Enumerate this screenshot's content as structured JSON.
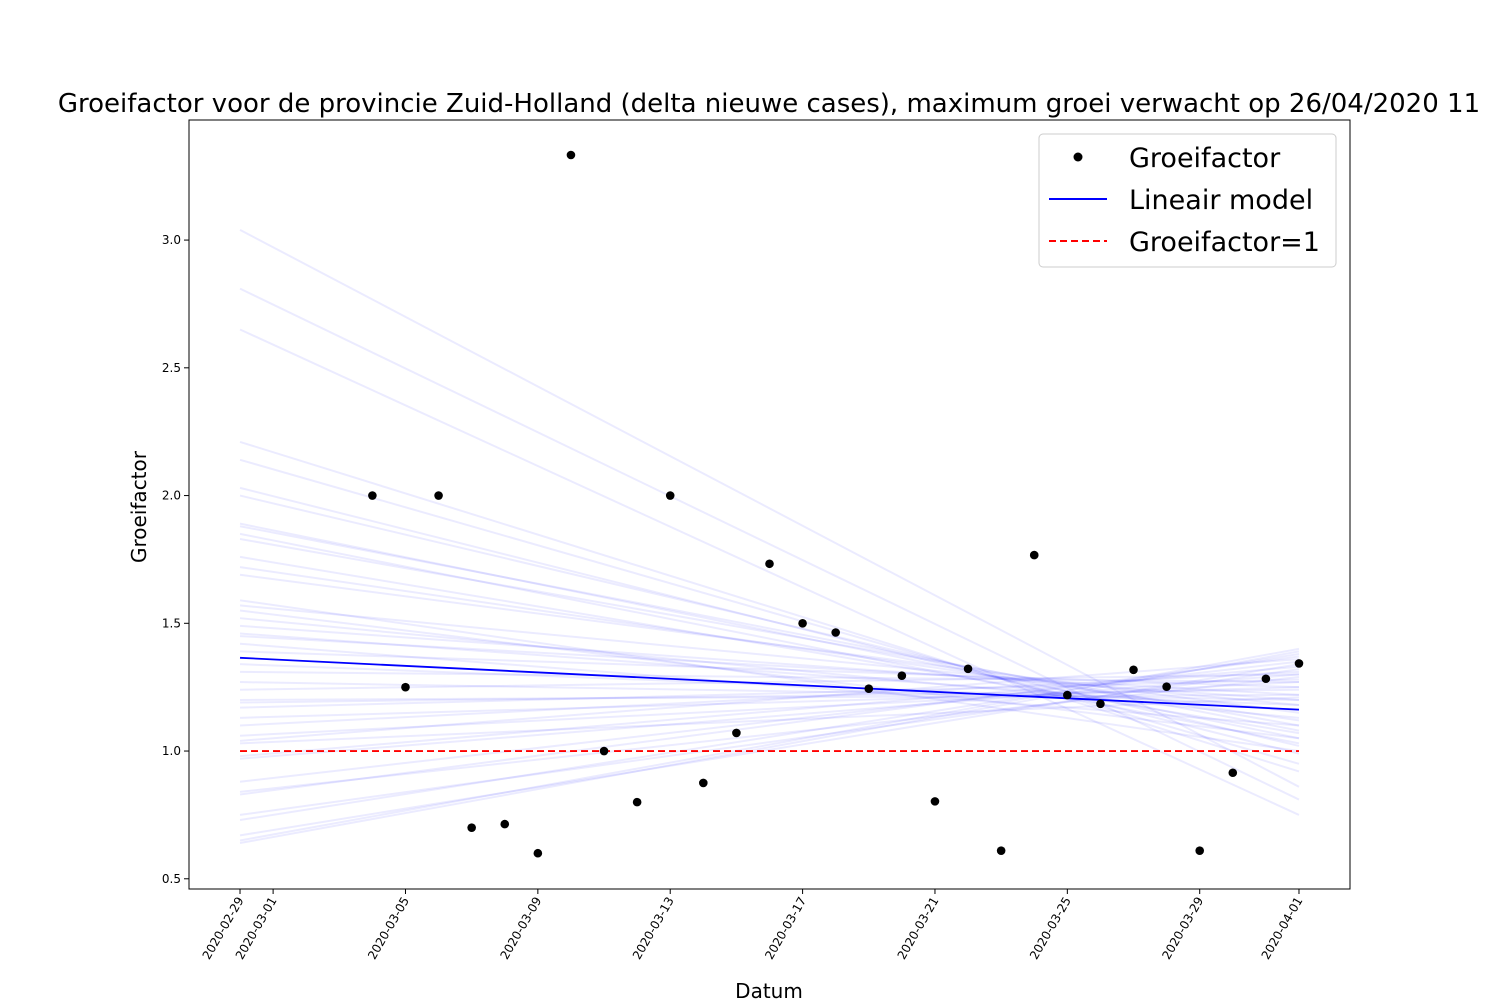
{
  "chart_data": {
    "type": "scatter",
    "title": "Groeifactor voor de provincie Zuid-Holland (delta nieuwe cases), maximum groei verwacht op 26/04/2020 11",
    "xlabel": "Datum",
    "ylabel": "Groeifactor",
    "xlim": [
      "2020-02-27T11:00",
      "2020-04-02T13:00"
    ],
    "ylim": [
      0.46,
      3.47
    ],
    "x_ticks": [
      "2020-02-29",
      "2020-03-01",
      "2020-03-05",
      "2020-03-09",
      "2020-03-13",
      "2020-03-17",
      "2020-03-21",
      "2020-03-25",
      "2020-03-29",
      "2020-04-01"
    ],
    "y_ticks": [
      "0.5",
      "1.0",
      "1.5",
      "2.0",
      "2.5",
      "3.0"
    ],
    "grid": false,
    "legend_position": "top-right",
    "series": [
      {
        "name": "Groeifactor",
        "kind": "scatter",
        "color": "#000000",
        "points": [
          {
            "x": "2020-03-04",
            "y": 2.0
          },
          {
            "x": "2020-03-05",
            "y": 1.25
          },
          {
            "x": "2020-03-06",
            "y": 2.0
          },
          {
            "x": "2020-03-07",
            "y": 0.7
          },
          {
            "x": "2020-03-08",
            "y": 0.714
          },
          {
            "x": "2020-03-09",
            "y": 0.6
          },
          {
            "x": "2020-03-10",
            "y": 3.333
          },
          {
            "x": "2020-03-11",
            "y": 1.0
          },
          {
            "x": "2020-03-12",
            "y": 0.8
          },
          {
            "x": "2020-03-13",
            "y": 2.0
          },
          {
            "x": "2020-03-14",
            "y": 0.875
          },
          {
            "x": "2020-03-15",
            "y": 1.071
          },
          {
            "x": "2020-03-16",
            "y": 1.733
          },
          {
            "x": "2020-03-17",
            "y": 1.5
          },
          {
            "x": "2020-03-18",
            "y": 1.464
          },
          {
            "x": "2020-03-19",
            "y": 1.244
          },
          {
            "x": "2020-03-20",
            "y": 1.295
          },
          {
            "x": "2020-03-21",
            "y": 0.803
          },
          {
            "x": "2020-03-22",
            "y": 1.322
          },
          {
            "x": "2020-03-23",
            "y": 0.61
          },
          {
            "x": "2020-03-24",
            "y": 1.767
          },
          {
            "x": "2020-03-25",
            "y": 1.219
          },
          {
            "x": "2020-03-26",
            "y": 1.185
          },
          {
            "x": "2020-03-27",
            "y": 1.318
          },
          {
            "x": "2020-03-28",
            "y": 1.252
          },
          {
            "x": "2020-03-29",
            "y": 0.61
          },
          {
            "x": "2020-03-30",
            "y": 0.915
          },
          {
            "x": "2020-03-31",
            "y": 1.283
          },
          {
            "x": "2020-04-01",
            "y": 1.343
          }
        ]
      },
      {
        "name": "Lineair model",
        "kind": "line",
        "color": "#0000ff",
        "x": [
          "2020-02-29",
          "2020-04-01"
        ],
        "y": [
          1.365,
          1.162
        ]
      },
      {
        "name": "Groeifactor=1",
        "kind": "line",
        "dash": "dashed",
        "color": "#ff0000",
        "x": [
          "2020-02-29",
          "2020-04-01"
        ],
        "y": [
          1.0,
          1.0
        ]
      },
      {
        "kind": "line-ensemble",
        "color": "#0000ff",
        "x": [
          "2020-02-29",
          "2020-04-01"
        ],
        "lines": [
          [
            3.04,
            0.86
          ],
          [
            2.81,
            0.81
          ],
          [
            2.65,
            0.75
          ],
          [
            2.21,
            0.92
          ],
          [
            2.14,
            0.95
          ],
          [
            2.03,
            0.99
          ],
          [
            2.0,
            1.02
          ],
          [
            1.89,
            1.05
          ],
          [
            1.88,
            1.08
          ],
          [
            1.85,
            1.03
          ],
          [
            1.83,
            1.1
          ],
          [
            1.76,
            1.07
          ],
          [
            1.72,
            1.12
          ],
          [
            1.69,
            1.15
          ],
          [
            1.59,
            1.0
          ],
          [
            1.57,
            1.18
          ],
          [
            1.55,
            1.05
          ],
          [
            1.52,
            1.13
          ],
          [
            1.49,
            1.2
          ],
          [
            1.46,
            1.16
          ],
          [
            1.45,
            1.22
          ],
          [
            1.42,
            1.1
          ],
          [
            1.39,
            1.25
          ],
          [
            1.34,
            1.18
          ],
          [
            1.31,
            1.27
          ],
          [
            1.27,
            1.2
          ],
          [
            1.24,
            1.3
          ],
          [
            1.2,
            1.22
          ],
          [
            1.19,
            1.24
          ],
          [
            1.17,
            1.28
          ],
          [
            1.13,
            1.25
          ],
          [
            1.1,
            1.31
          ],
          [
            1.06,
            1.27
          ],
          [
            1.04,
            1.36
          ],
          [
            1.03,
            1.21
          ],
          [
            0.98,
            1.33
          ],
          [
            0.97,
            1.3
          ],
          [
            0.88,
            1.35
          ],
          [
            0.84,
            1.29
          ],
          [
            0.83,
            1.37
          ],
          [
            0.75,
            1.32
          ],
          [
            0.73,
            1.38
          ],
          [
            0.67,
            1.34
          ],
          [
            0.65,
            1.4
          ],
          [
            0.64,
            1.39
          ]
        ]
      }
    ]
  }
}
